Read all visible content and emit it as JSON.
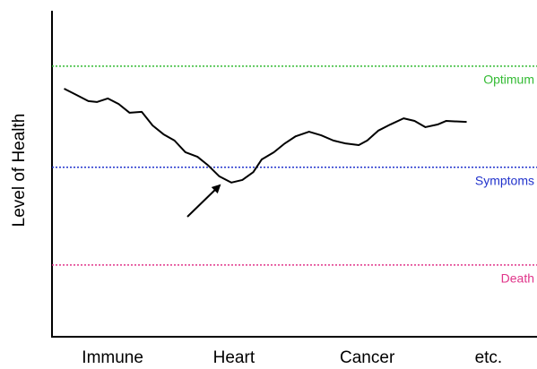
{
  "chart_data": {
    "type": "line",
    "y_label": "Level of Health",
    "xlim": [
      0,
      4
    ],
    "ylim": [
      0,
      100
    ],
    "xticks": [
      {
        "value": 0.5,
        "label": "Immune"
      },
      {
        "value": 1.5,
        "label": "Heart"
      },
      {
        "value": 2.6,
        "label": "Cancer"
      },
      {
        "value": 3.6,
        "label": "etc."
      }
    ],
    "reference_lines": [
      {
        "label": "Optimum",
        "value": 83,
        "color": "#33bb33"
      },
      {
        "label": "Symptoms",
        "value": 52,
        "color": "#2233cc"
      },
      {
        "label": "Death",
        "value": 22,
        "color": "#e0358a"
      }
    ],
    "series": [
      {
        "color": "#000000",
        "x": [
          0.1,
          0.2,
          0.3,
          0.37,
          0.46,
          0.55,
          0.64,
          0.74,
          0.83,
          0.92,
          1.01,
          1.1,
          1.2,
          1.29,
          1.38,
          1.48,
          1.57,
          1.66,
          1.73,
          1.83,
          1.92,
          2.01,
          2.12,
          2.22,
          2.32,
          2.42,
          2.53,
          2.6,
          2.69,
          2.79,
          2.9,
          2.99,
          3.08,
          3.18,
          3.25,
          3.42
        ],
        "values": [
          76.1,
          74.2,
          72.3,
          72.0,
          73.1,
          71.4,
          68.7,
          69.0,
          64.8,
          62.1,
          60.2,
          56.6,
          55.2,
          52.5,
          49.2,
          47.3,
          48.1,
          50.5,
          54.4,
          56.6,
          59.3,
          61.5,
          62.9,
          61.8,
          60.2,
          59.3,
          58.8,
          60.2,
          63.2,
          65.1,
          67.0,
          66.2,
          64.3,
          65.1,
          66.2,
          65.9
        ]
      }
    ]
  }
}
